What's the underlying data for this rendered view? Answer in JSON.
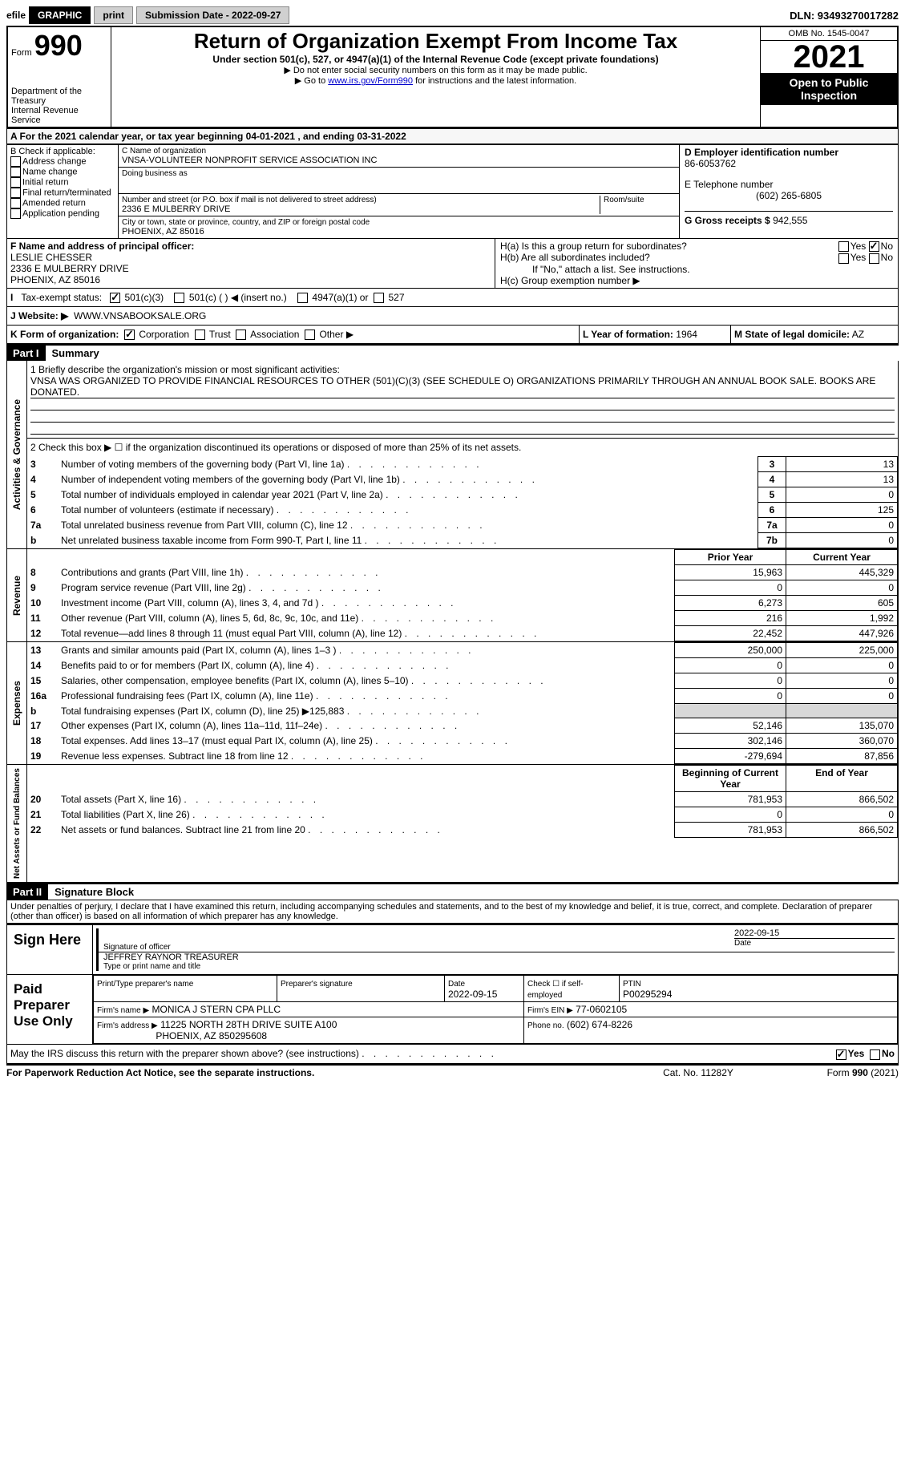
{
  "topBar": {
    "efile_prefix": "efile",
    "graphic": "GRAPHIC",
    "print": "print",
    "submission_label": "Submission Date - 2022-09-27",
    "dln": "DLN: 93493270017282"
  },
  "header_left": {
    "form_label": "Form",
    "form_num": "990",
    "dept": "Department of the Treasury",
    "irs": "Internal Revenue Service"
  },
  "header_center": {
    "title": "Return of Organization Exempt From Income Tax",
    "subtitle": "Under section 501(c), 527, or 4947(a)(1) of the Internal Revenue Code (except private foundations)",
    "note1": "▶ Do not enter social security numbers on this form as it may be made public.",
    "note2_a": "▶ Go to ",
    "note2_link": "www.irs.gov/Form990",
    "note2_b": " for instructions and the latest information."
  },
  "header_right": {
    "omb": "OMB No. 1545-0047",
    "year": "2021",
    "open": "Open to Public Inspection"
  },
  "section_a": "A For the 2021 calendar year, or tax year beginning 04-01-2021     , and ending 03-31-2022",
  "b": {
    "label": "B Check if applicable:",
    "addr": "Address change",
    "name": "Name change",
    "initial": "Initial return",
    "final": "Final return/terminated",
    "amended": "Amended return",
    "app": "Application pending"
  },
  "c": {
    "name_label": "C Name of organization",
    "name": "VNSA-VOLUNTEER NONPROFIT SERVICE ASSOCIATION INC",
    "dba_label": "Doing business as",
    "addr_label": "Number and street (or P.O. box if mail is not delivered to street address)",
    "room_label": "Room/suite",
    "addr": "2336 E MULBERRY DRIVE",
    "city_label": "City or town, state or province, country, and ZIP or foreign postal code",
    "city": "PHOENIX, AZ   85016"
  },
  "d": {
    "ein_label": "D Employer identification number",
    "ein": "86-6053762",
    "phone_label": "E Telephone number",
    "phone": "(602) 265-6805",
    "gross_label": "G Gross receipts $",
    "gross": "942,555"
  },
  "f": {
    "label": "F  Name and address of principal officer:",
    "name": "LESLIE CHESSER",
    "addr1": "2336 E MULBERRY DRIVE",
    "addr2": "PHOENIX, AZ   85016"
  },
  "h": {
    "ha": "H(a)  Is this a group return for subordinates?",
    "hb": "H(b)  Are all subordinates included?",
    "hb_note": "If \"No,\" attach a list. See instructions.",
    "hc": "H(c)  Group exemption number ▶",
    "yes": "Yes",
    "no": "No"
  },
  "tax_exempt": {
    "label": "Tax-exempt status:",
    "c3": "501(c)(3)",
    "c_other": "501(c) (   ) ◀ (insert no.)",
    "a1": "4947(a)(1) or",
    "s527": "527"
  },
  "j": {
    "label": "J   Website: ▶",
    "value": "WWW.VNSABOOKSALE.ORG"
  },
  "k": {
    "label": "K Form of organization:",
    "corp": "Corporation",
    "trust": "Trust",
    "assoc": "Association",
    "other": "Other ▶"
  },
  "l": {
    "label": "L Year of formation:",
    "value": "1964"
  },
  "m": {
    "label": "M State of legal domicile:",
    "value": "AZ"
  },
  "part1": {
    "header": "Part I",
    "title": "Summary",
    "line1_label": "1  Briefly describe the organization's mission or most significant activities:",
    "line1_text": "VNSA WAS ORGANIZED TO PROVIDE FINANCIAL RESOURCES TO OTHER (501)(C)(3) (SEE SCHEDULE O) ORGANIZATIONS PRIMARILY THROUGH AN ANNUAL BOOK SALE. BOOKS ARE DONATED.",
    "line2": "2   Check this box ▶ ☐  if the organization discontinued its operations or disposed of more than 25% of its net assets.",
    "sideA": "Activities & Governance",
    "rows_ag": [
      {
        "n": "3",
        "label": "Number of voting members of the governing body (Part VI, line 1a)",
        "box": "3",
        "val": "13"
      },
      {
        "n": "4",
        "label": "Number of independent voting members of the governing body (Part VI, line 1b)",
        "box": "4",
        "val": "13"
      },
      {
        "n": "5",
        "label": "Total number of individuals employed in calendar year 2021 (Part V, line 2a)",
        "box": "5",
        "val": "0"
      },
      {
        "n": "6",
        "label": "Total number of volunteers (estimate if necessary)",
        "box": "6",
        "val": "125"
      },
      {
        "n": "7a",
        "label": "Total unrelated business revenue from Part VIII, column (C), line 12",
        "box": "7a",
        "val": "0"
      },
      {
        "n": "b",
        "label": "Net unrelated business taxable income from Form 990-T, Part I, line 11",
        "box": "7b",
        "val": "0"
      }
    ],
    "prior_year": "Prior Year",
    "current_year": "Current Year",
    "sideR": "Revenue",
    "rows_rev": [
      {
        "n": "8",
        "label": "Contributions and grants (Part VIII, line 1h)",
        "py": "15,963",
        "cy": "445,329"
      },
      {
        "n": "9",
        "label": "Program service revenue (Part VIII, line 2g)",
        "py": "0",
        "cy": "0"
      },
      {
        "n": "10",
        "label": "Investment income (Part VIII, column (A), lines 3, 4, and 7d )",
        "py": "6,273",
        "cy": "605"
      },
      {
        "n": "11",
        "label": "Other revenue (Part VIII, column (A), lines 5, 6d, 8c, 9c, 10c, and 11e)",
        "py": "216",
        "cy": "1,992"
      },
      {
        "n": "12",
        "label": "Total revenue—add lines 8 through 11 (must equal Part VIII, column (A), line 12)",
        "py": "22,452",
        "cy": "447,926"
      }
    ],
    "sideE": "Expenses",
    "rows_exp": [
      {
        "n": "13",
        "label": "Grants and similar amounts paid (Part IX, column (A), lines 1–3 )",
        "py": "250,000",
        "cy": "225,000"
      },
      {
        "n": "14",
        "label": "Benefits paid to or for members (Part IX, column (A), line 4)",
        "py": "0",
        "cy": "0"
      },
      {
        "n": "15",
        "label": "Salaries, other compensation, employee benefits (Part IX, column (A), lines 5–10)",
        "py": "0",
        "cy": "0"
      },
      {
        "n": "16a",
        "label": "Professional fundraising fees (Part IX, column (A), line 11e)",
        "py": "0",
        "cy": "0"
      },
      {
        "n": "b",
        "label": "Total fundraising expenses (Part IX, column (D), line 25) ▶125,883",
        "py": "shade",
        "cy": "shade"
      },
      {
        "n": "17",
        "label": "Other expenses (Part IX, column (A), lines 11a–11d, 11f–24e)",
        "py": "52,146",
        "cy": "135,070"
      },
      {
        "n": "18",
        "label": "Total expenses. Add lines 13–17 (must equal Part IX, column (A), line 25)",
        "py": "302,146",
        "cy": "360,070"
      },
      {
        "n": "19",
        "label": "Revenue less expenses. Subtract line 18 from line 12",
        "py": "-279,694",
        "cy": "87,856"
      }
    ],
    "sideN": "Net Assets or Fund Balances",
    "boy": "Beginning of Current Year",
    "eoy": "End of Year",
    "rows_na": [
      {
        "n": "20",
        "label": "Total assets (Part X, line 16)",
        "py": "781,953",
        "cy": "866,502"
      },
      {
        "n": "21",
        "label": "Total liabilities (Part X, line 26)",
        "py": "0",
        "cy": "0"
      },
      {
        "n": "22",
        "label": "Net assets or fund balances. Subtract line 21 from line 20",
        "py": "781,953",
        "cy": "866,502"
      }
    ]
  },
  "part2": {
    "header": "Part II",
    "title": "Signature Block",
    "perjury": "Under penalties of perjury, I declare that I have examined this return, including accompanying schedules and statements, and to the best of my knowledge and belief, it is true, correct, and complete. Declaration of preparer (other than officer) is based on all information of which preparer has any knowledge.",
    "sign_here": "Sign Here",
    "sig_officer": "Signature of officer",
    "sig_date": "2022-09-15",
    "date_label": "Date",
    "officer_name": "JEFFREY RAYNOR  TREASURER",
    "type_name": "Type or print name and title",
    "paid_prep": "Paid Preparer Use Only",
    "prep_name_label": "Print/Type preparer's name",
    "prep_sig_label": "Preparer's signature",
    "prep_date": "2022-09-15",
    "check_self": "Check ☐ if self-employed",
    "ptin_label": "PTIN",
    "ptin": "P00295294",
    "firm_name_label": "Firm's name   ▶",
    "firm_name": "MONICA J STERN CPA PLLC",
    "firm_ein_label": "Firm's EIN ▶",
    "firm_ein": "77-0602105",
    "firm_addr_label": "Firm's address ▶",
    "firm_addr1": "11225 NORTH 28TH DRIVE SUITE A100",
    "firm_addr2": "PHOENIX, AZ   850295608",
    "firm_phone_label": "Phone no.",
    "firm_phone": "(602) 674-8226",
    "discuss": "May the IRS discuss this return with the preparer shown above? (see instructions)",
    "footer_left": "For Paperwork Reduction Act Notice, see the separate instructions.",
    "footer_mid": "Cat. No. 11282Y",
    "footer_right": "Form 990 (2021)"
  }
}
